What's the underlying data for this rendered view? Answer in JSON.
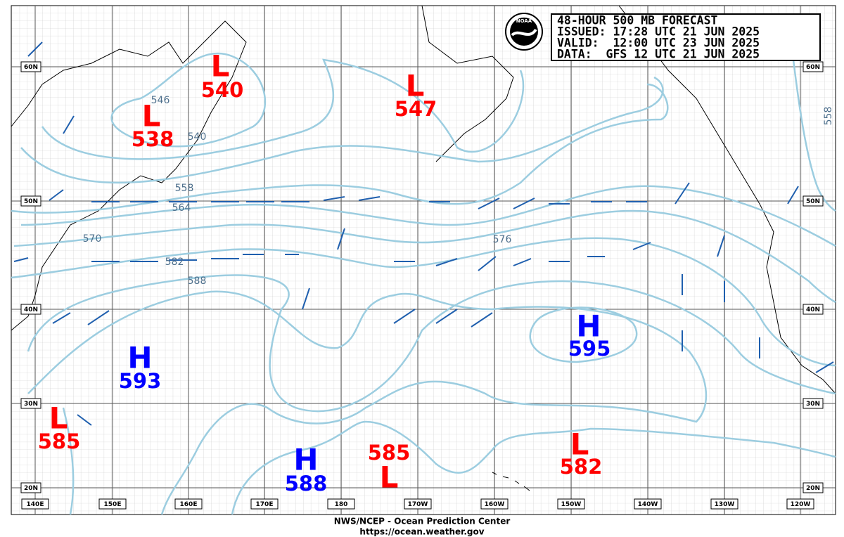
{
  "header": {
    "lines": [
      "48-HOUR 500 MB FORECAST",
      "ISSUED: 17:28 UTC 21 JUN 2025",
      "VALID:  12:00 UTC 23 JUN 2025",
      "DATA:  GFS 12 UTC 21 JUN 2025"
    ],
    "logo": "NOAA"
  },
  "centers": [
    {
      "type": "L",
      "value": "540"
    },
    {
      "type": "L",
      "value": "538"
    },
    {
      "type": "L",
      "value": "547"
    },
    {
      "type": "H",
      "value": "593"
    },
    {
      "type": "H",
      "value": "595"
    },
    {
      "type": "L",
      "value": "585"
    },
    {
      "type": "H",
      "value": "588"
    },
    {
      "type": "L",
      "value": "585"
    },
    {
      "type": "L",
      "value": "582"
    }
  ],
  "contour_labels": [
    "546",
    "540",
    "558",
    "564",
    "570",
    "582",
    "588",
    "576",
    "558"
  ],
  "lat_labels": [
    "60N",
    "50N",
    "40N",
    "30N",
    "20N"
  ],
  "lon_labels": [
    "140E",
    "150E",
    "160E",
    "170E",
    "180",
    "170W",
    "160W",
    "150W",
    "140W",
    "130W",
    "120W"
  ],
  "footer": [
    "NWS/NCEP - Ocean Prediction Center",
    "https://ocean.weather.gov"
  ]
}
